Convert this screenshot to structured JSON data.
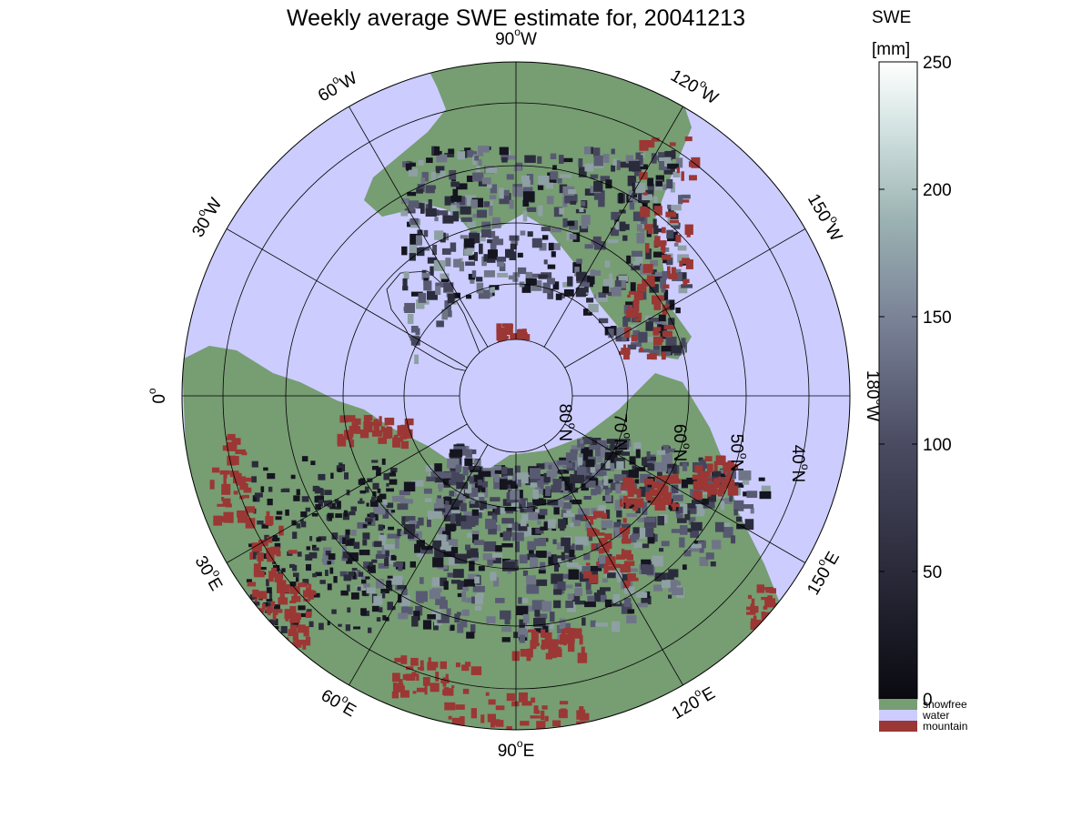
{
  "title": "Weekly average SWE estimate for, 20041213",
  "colorbar": {
    "label_line1": "SWE",
    "label_line2": "[mm]",
    "ticks": [
      {
        "value": 0,
        "label": "0"
      },
      {
        "value": 50,
        "label": "50"
      },
      {
        "value": 100,
        "label": "100"
      },
      {
        "value": 150,
        "label": "150"
      },
      {
        "value": 200,
        "label": "200"
      },
      {
        "value": 250,
        "label": "250"
      }
    ],
    "range": [
      0,
      250
    ],
    "colors": {
      "low": "#0a0a10",
      "mid1": "#3b3b52",
      "mid2": "#63647e",
      "mid3": "#8b9fa4",
      "high": "#c3d9d6",
      "top": "#ffffff"
    }
  },
  "legend": [
    {
      "label": "snowfree",
      "color": "#779d73"
    },
    {
      "label": "water",
      "color": "#ccccff"
    },
    {
      "label": "mountain",
      "color": "#9b3734"
    }
  ],
  "map": {
    "projection": "north-polar-stereographic",
    "ocean_color": "#ccccff",
    "land_color": "#779d73",
    "snow_colors": [
      "#151520",
      "#2b2c3b",
      "#45465c",
      "#585a72",
      "#6f7587",
      "#8ea0a3"
    ],
    "longitude_labels": [
      {
        "deg": "90",
        "hemi": "W"
      },
      {
        "deg": "120",
        "hemi": "W"
      },
      {
        "deg": "150",
        "hemi": "W"
      },
      {
        "deg": "180",
        "hemi": "W"
      },
      {
        "deg": "150",
        "hemi": "E"
      },
      {
        "deg": "120",
        "hemi": "E"
      },
      {
        "deg": "90",
        "hemi": "E"
      },
      {
        "deg": "60",
        "hemi": "E"
      },
      {
        "deg": "30",
        "hemi": "E"
      },
      {
        "deg": "0",
        "hemi": ""
      },
      {
        "deg": "30",
        "hemi": "W"
      },
      {
        "deg": "60",
        "hemi": "W"
      }
    ],
    "latitude_labels": [
      {
        "deg": "80",
        "hemi": "N"
      },
      {
        "deg": "70",
        "hemi": "N"
      },
      {
        "deg": "60",
        "hemi": "N"
      },
      {
        "deg": "50",
        "hemi": "N"
      },
      {
        "deg": "40",
        "hemi": "N"
      }
    ],
    "degree_symbol": "o"
  }
}
